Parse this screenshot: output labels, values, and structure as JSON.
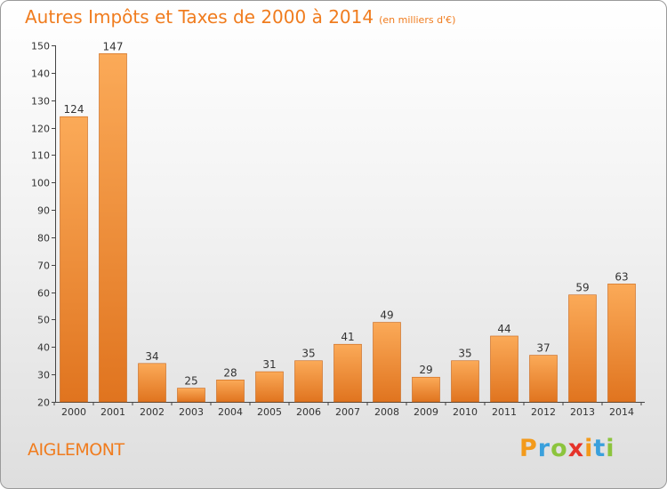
{
  "title": "Autres Impôts et Taxes de 2000 à 2014",
  "unit": "(en milliers d'€)",
  "commune": "AIGLEMONT",
  "logo": {
    "p": "P",
    "r": "r",
    "o": "o",
    "x": "x",
    "i1": "i",
    "t": "t",
    "i2": "i"
  },
  "colors": {
    "bar_light": "#fbaa58",
    "bar_dark": "#e0741f",
    "title": "#f07c1e"
  },
  "chart_data": {
    "type": "bar",
    "title": "Autres Impôts et Taxes de 2000 à 2014",
    "subtitle": "(en milliers d'€)",
    "xlabel": "",
    "ylabel": "",
    "categories": [
      "2000",
      "2001",
      "2002",
      "2003",
      "2004",
      "2005",
      "2006",
      "2007",
      "2008",
      "2009",
      "2010",
      "2011",
      "2012",
      "2013",
      "2014"
    ],
    "values": [
      124,
      147,
      34,
      25,
      28,
      31,
      35,
      41,
      49,
      29,
      35,
      44,
      37,
      59,
      63
    ],
    "ylim": [
      20,
      150
    ],
    "yticks": [
      20,
      30,
      40,
      50,
      60,
      70,
      80,
      90,
      100,
      110,
      120,
      130,
      140,
      150
    ],
    "grid": false,
    "legend": "none"
  }
}
